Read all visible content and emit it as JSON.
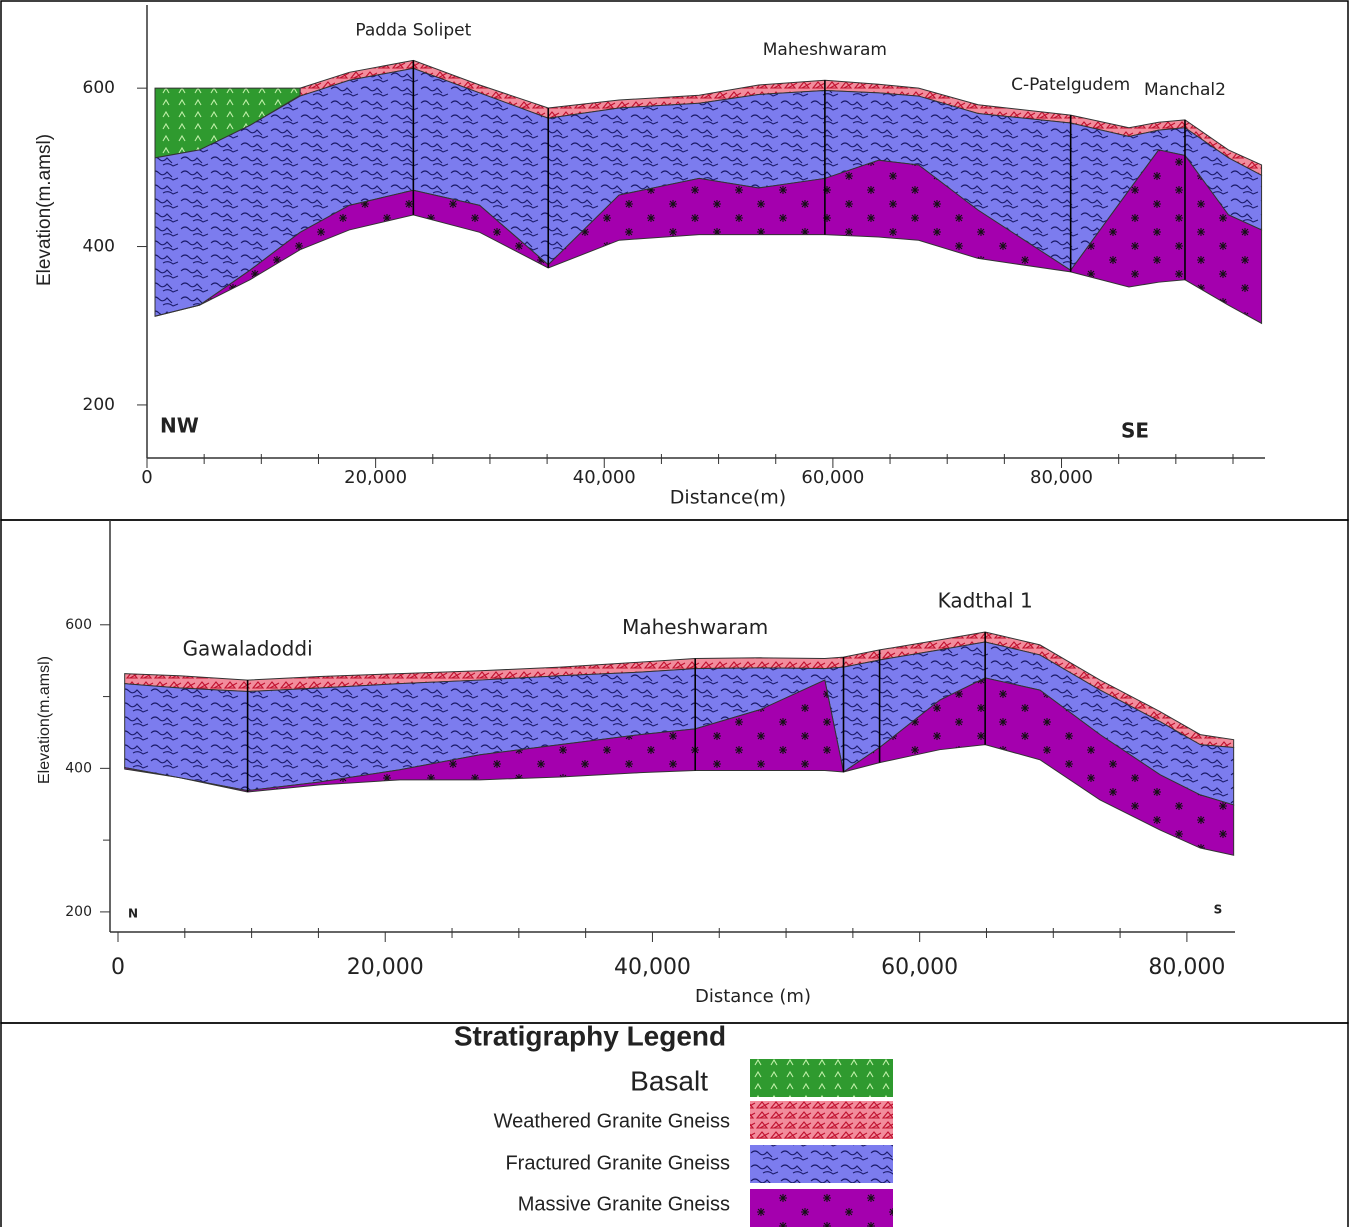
{
  "chart_data": [
    {
      "type": "cross-section",
      "x": [
        700,
        4600,
        9000,
        13400,
        17700,
        23300,
        29100,
        35100,
        41300,
        48300,
        53500,
        59300,
        64000,
        67500,
        72700,
        80800,
        85900,
        88500,
        90800,
        94600,
        97500
      ],
      "xlim": [
        0,
        97800
      ],
      "xticks": [
        0,
        {
          "value": 20000,
          "label": "20,000"
        },
        {
          "value": 40000,
          "label": "40,000"
        },
        {
          "value": 60000,
          "label": "60,000"
        },
        {
          "value": 80000,
          "label": "80,000"
        }
      ],
      "xminorticks": [
        5000,
        10000,
        15000,
        25000,
        30000,
        35000,
        45000,
        50000,
        55000,
        65000,
        70000,
        75000,
        85000,
        90000,
        95000
      ],
      "ylim": [
        133,
        705
      ],
      "yticks": [
        200,
        400,
        600
      ],
      "xlabel": "Distance(m)",
      "ylabel": "Elevation(m.amsl)",
      "direction_left": "NW",
      "direction_right": "SE",
      "series": [
        {
          "name": "Basalt",
          "top": [
            600,
            600,
            600,
            600,
            null,
            null,
            null,
            null,
            null,
            null,
            null,
            null,
            null,
            null,
            null,
            null,
            null,
            null,
            null,
            null,
            null
          ],
          "bottom": [
            512,
            522,
            553,
            591,
            null,
            null,
            null,
            null,
            null,
            null,
            null,
            null,
            null,
            null,
            null,
            null,
            null,
            null,
            null,
            null,
            null
          ]
        },
        {
          "name": "Weathered Granite Gneiss",
          "top": [
            null,
            null,
            null,
            600,
            620,
            635,
            604,
            575,
            585,
            591,
            604,
            610,
            605,
            600,
            579,
            566,
            550,
            557,
            560,
            522,
            503
          ],
          "bottom": [
            null,
            null,
            null,
            590,
            610,
            625,
            594,
            562,
            575,
            581,
            592,
            597,
            594,
            590,
            568,
            556,
            539,
            547,
            550,
            512,
            490
          ]
        },
        {
          "name": "Fractured Granite Gneiss",
          "top": [
            512,
            522,
            553,
            590,
            610,
            625,
            594,
            562,
            575,
            581,
            592,
            597,
            594,
            590,
            568,
            556,
            539,
            547,
            550,
            512,
            490
          ],
          "bottom": [
            312,
            326,
            370,
            418,
            452,
            471,
            452,
            377,
            465,
            486,
            474,
            486,
            509,
            503,
            446,
            370,
            471,
            522,
            515,
            440,
            421
          ]
        },
        {
          "name": "Massive Granite Gneiss",
          "top": [
            312,
            326,
            370,
            418,
            452,
            471,
            452,
            377,
            465,
            486,
            474,
            486,
            509,
            503,
            446,
            370,
            471,
            522,
            515,
            440,
            421
          ],
          "bottom": [
            312,
            326,
            358,
            396,
            421,
            440,
            418,
            373,
            408,
            415,
            415,
            415,
            412,
            408,
            385,
            368,
            349,
            355,
            358,
            326,
            303
          ]
        }
      ],
      "wells": [
        {
          "name": "Padda Solipet",
          "x": 23300
        },
        {
          "name": null,
          "x": 35100
        },
        {
          "name": "Maheshwaram",
          "x": 59300
        },
        {
          "name": "C-Patelgudem",
          "x": 80800
        },
        {
          "name": "Manchal2",
          "x": 90800
        }
      ]
    },
    {
      "type": "cross-section",
      "x": [
        500,
        4600,
        9700,
        15100,
        21100,
        27100,
        33100,
        39100,
        43200,
        48100,
        52900,
        54300,
        57000,
        61500,
        64900,
        69000,
        73500,
        78000,
        81000,
        83500
      ],
      "xlim": [
        0,
        83600
      ],
      "xticks": [
        0,
        {
          "value": 20000,
          "label": "20,000"
        },
        {
          "value": 40000,
          "label": "40,000"
        },
        {
          "value": 60000,
          "label": "60,000"
        },
        {
          "value": 80000,
          "label": "80,000"
        }
      ],
      "xminorticks": [
        5000,
        10000,
        15000,
        25000,
        30000,
        35000,
        45000,
        50000,
        55000,
        65000,
        70000,
        75000
      ],
      "ylim": [
        172,
        746
      ],
      "yticks": [
        200,
        400,
        600
      ],
      "yminorticks": [
        300,
        500
      ],
      "xlabel": "Distance (m)",
      "ylabel": "Elevation(m.amsl)",
      "direction_left": "N",
      "direction_right": "S",
      "series": [
        {
          "name": "Weathered Granite Gneiss",
          "top": [
            532,
            529,
            523,
            528,
            532,
            536,
            541,
            548,
            553,
            554,
            553,
            555,
            565,
            579,
            590,
            572,
            523,
            479,
            447,
            440
          ],
          "bottom": [
            518,
            512,
            507,
            512,
            518,
            523,
            529,
            534,
            539,
            540,
            539,
            541,
            551,
            565,
            576,
            558,
            509,
            465,
            433,
            429
          ]
        },
        {
          "name": "Fractured Granite Gneiss",
          "top": [
            518,
            512,
            507,
            512,
            518,
            523,
            529,
            534,
            539,
            540,
            539,
            541,
            551,
            565,
            576,
            558,
            509,
            465,
            433,
            429
          ],
          "bottom": [
            401,
            387,
            369,
            381,
            398,
            419,
            433,
            447,
            455,
            482,
            523,
            395,
            429,
            495,
            526,
            509,
            447,
            391,
            363,
            349
          ]
        },
        {
          "name": "Massive Granite Gneiss",
          "top": [
            401,
            387,
            369,
            381,
            398,
            419,
            433,
            447,
            455,
            482,
            523,
            395,
            429,
            495,
            526,
            509,
            447,
            391,
            363,
            349
          ],
          "bottom": [
            399,
            387,
            367,
            377,
            384,
            384,
            388,
            394,
            397,
            397,
            397,
            395,
            408,
            426,
            433,
            412,
            356,
            314,
            289,
            279
          ]
        }
      ],
      "wells": [
        {
          "name": "Gawaladoddi",
          "x": 9700
        },
        {
          "name": "Maheshwaram",
          "x": 43200
        },
        {
          "name": null,
          "x": 54300
        },
        {
          "name": null,
          "x": 57000
        },
        {
          "name": "Kadthal 1",
          "x": 64900
        }
      ]
    }
  ],
  "legend": {
    "title": "Stratigraphy Legend",
    "items": [
      {
        "name": "Basalt",
        "color": "#2f9a2f"
      },
      {
        "name": "Weathered Granite Gneiss",
        "color": "#f28c9c"
      },
      {
        "name": "Fractured Granite Gneiss",
        "color": "#7c7cee"
      },
      {
        "name": "Massive Granite Gneiss",
        "color": "#a400ae"
      }
    ]
  }
}
